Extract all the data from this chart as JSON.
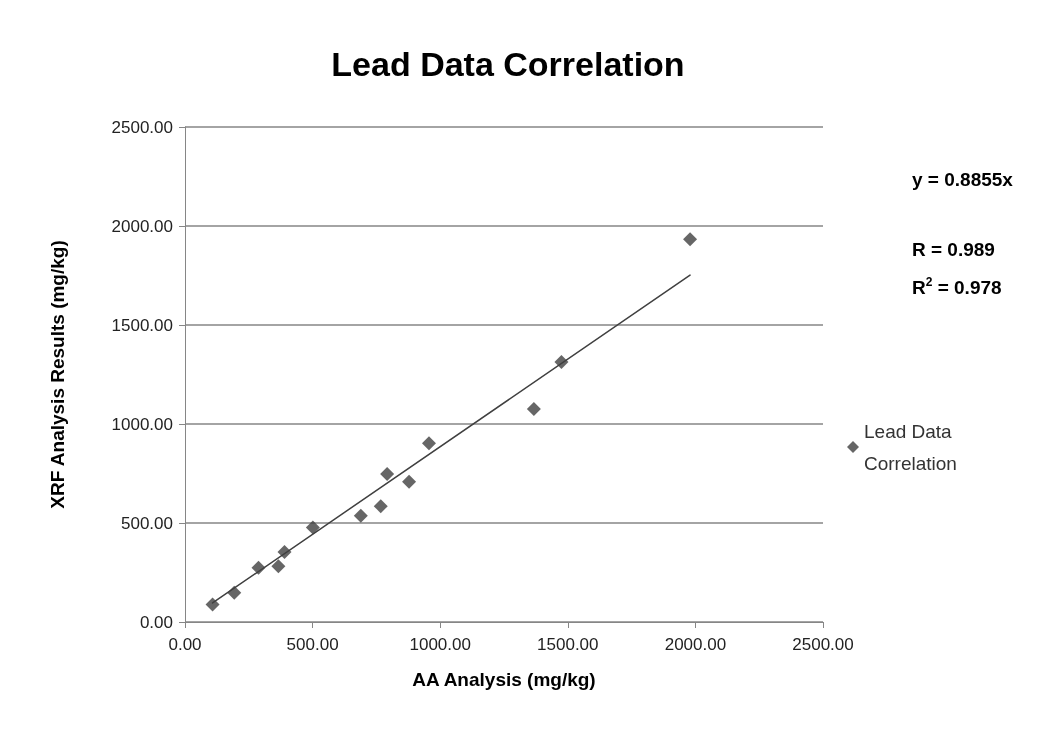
{
  "chart_data": {
    "type": "scatter",
    "title": "Lead Data Correlation",
    "xlabel": "AA Analysis (mg/kg)",
    "ylabel": "XRF Analysis Results (mg/kg)",
    "series": [
      {
        "name": "Lead Data Correlation",
        "color": "#404040",
        "marker": "diamond",
        "x": [
          108,
          193,
          288,
          366,
          390,
          501,
          689,
          767,
          792,
          878,
          956,
          1367,
          1475,
          1979
        ],
        "values": [
          88,
          148,
          274,
          282,
          353,
          477,
          536,
          585,
          747,
          708,
          903,
          1076,
          1313,
          1933
        ]
      },
      {
        "type": "line",
        "color": "#404040",
        "marker": "none",
        "x": [
          108,
          1979
        ],
        "values": [
          96,
          1752
        ]
      }
    ],
    "annotations": [
      "y = 0.8855x",
      "R = 0.989",
      "R$^{2}$ = 0.978"
    ],
    "xlim": [
      0,
      2500
    ],
    "ylim": [
      0,
      2500
    ],
    "xticks": [
      {
        "value": 0,
        "label": "0.00"
      },
      {
        "value": 500,
        "label": "500.00"
      },
      {
        "value": 1000,
        "label": "1000.00"
      },
      {
        "value": 1500,
        "label": "1500.00"
      },
      {
        "value": 2000,
        "label": "2000.00"
      },
      {
        "value": 2500,
        "label": "2500.00"
      }
    ],
    "yticks": [
      {
        "value": 0,
        "label": "0.00"
      },
      {
        "value": 500,
        "label": "500.00"
      },
      {
        "value": 1000,
        "label": "1000.00"
      },
      {
        "value": 1500,
        "label": "1500.00"
      },
      {
        "value": 2000,
        "label": "2000.00"
      },
      {
        "value": 2500,
        "label": "2500.00"
      }
    ],
    "grid": "y",
    "legend": "right"
  }
}
